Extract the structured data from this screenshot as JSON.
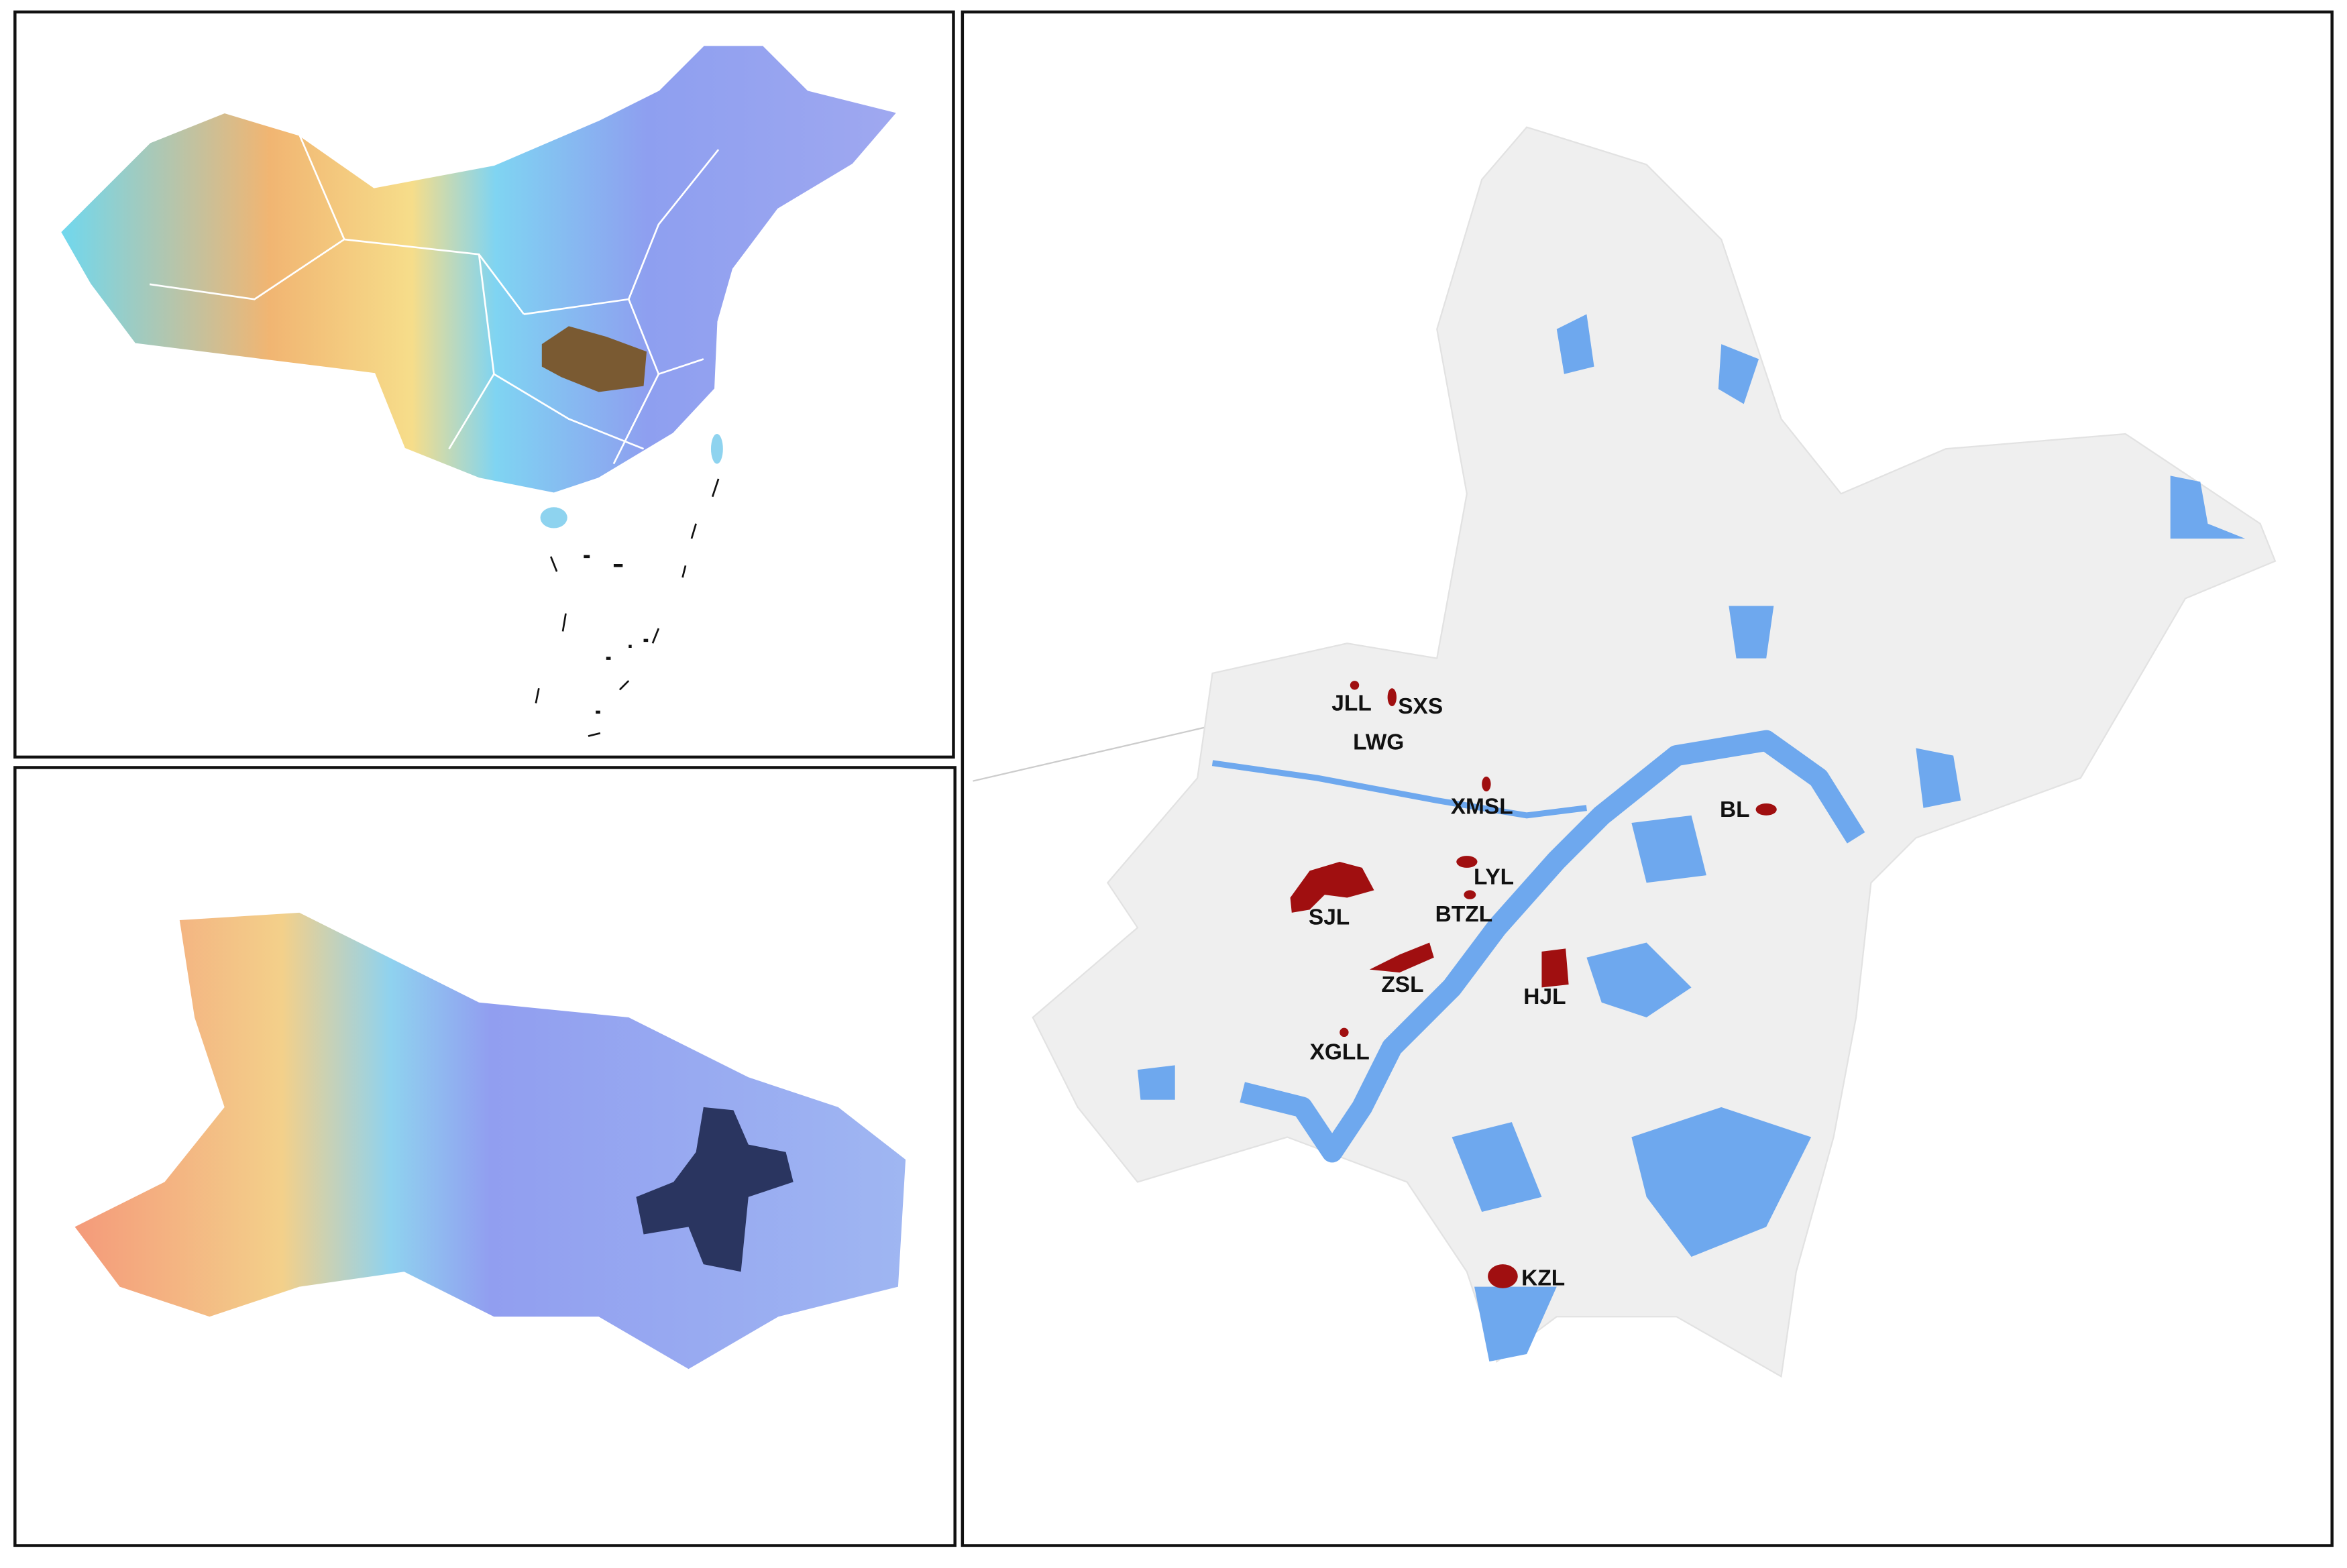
{
  "map": {
    "labels": [
      "JLL",
      "SXS",
      "LWG",
      "XMSL",
      "BL",
      "LYL",
      "SJL",
      "BTZL",
      "ZSL",
      "HJL",
      "XGLL",
      "KZL"
    ]
  }
}
